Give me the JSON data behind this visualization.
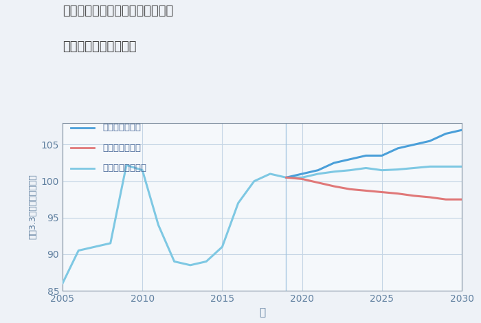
{
  "title_line1": "愛知県清須市西枇杷島町南大和の",
  "title_line2": "中古戸建ての価格推移",
  "xlabel": "年",
  "ylabel": "坪（3.3㎡）単価（万円）",
  "background_color": "#eef2f7",
  "plot_bg_color": "#f5f8fb",
  "grid_color": "#c5d5e5",
  "xlim": [
    2005,
    2030
  ],
  "ylim": [
    85,
    108
  ],
  "yticks": [
    85,
    90,
    95,
    100,
    105
  ],
  "xticks": [
    2005,
    2010,
    2015,
    2020,
    2025,
    2030
  ],
  "normal_x": [
    2005,
    2006,
    2007,
    2008,
    2009,
    2010,
    2011,
    2012,
    2013,
    2014,
    2015,
    2016,
    2017,
    2018,
    2019,
    2020,
    2021,
    2022,
    2023,
    2024,
    2025,
    2026,
    2027,
    2028,
    2029,
    2030
  ],
  "normal_y": [
    86.0,
    90.5,
    91.0,
    91.5,
    102.2,
    101.5,
    94.0,
    89.0,
    88.5,
    89.0,
    91.0,
    97.0,
    100.0,
    101.0,
    100.5,
    100.5,
    101.0,
    101.3,
    101.5,
    101.8,
    101.5,
    101.6,
    101.8,
    102.0,
    102.0,
    102.0
  ],
  "good_x": [
    2019,
    2020,
    2021,
    2022,
    2023,
    2024,
    2025,
    2026,
    2027,
    2028,
    2029,
    2030
  ],
  "good_y": [
    100.5,
    101.0,
    101.5,
    102.5,
    103.0,
    103.5,
    103.5,
    104.5,
    105.0,
    105.5,
    106.5,
    107.0
  ],
  "bad_x": [
    2019,
    2020,
    2021,
    2022,
    2023,
    2024,
    2025,
    2026,
    2027,
    2028,
    2029,
    2030
  ],
  "bad_y": [
    100.5,
    100.3,
    99.8,
    99.3,
    98.9,
    98.7,
    98.5,
    98.3,
    98.0,
    97.8,
    97.5,
    97.5
  ],
  "normal_color": "#7ec8e3",
  "good_color": "#4a9fd9",
  "bad_color": "#e07878",
  "normal_label": "ノーマルシナリオ",
  "good_label": "グッドシナリオ",
  "bad_label": "バッドシナリオ",
  "vline_x": 2019,
  "vline_color": "#a0c4e0",
  "title_color": "#404040",
  "tick_color": "#6080a0",
  "axis_color": "#8090a0",
  "legend_text_color": "#4a6a9a"
}
